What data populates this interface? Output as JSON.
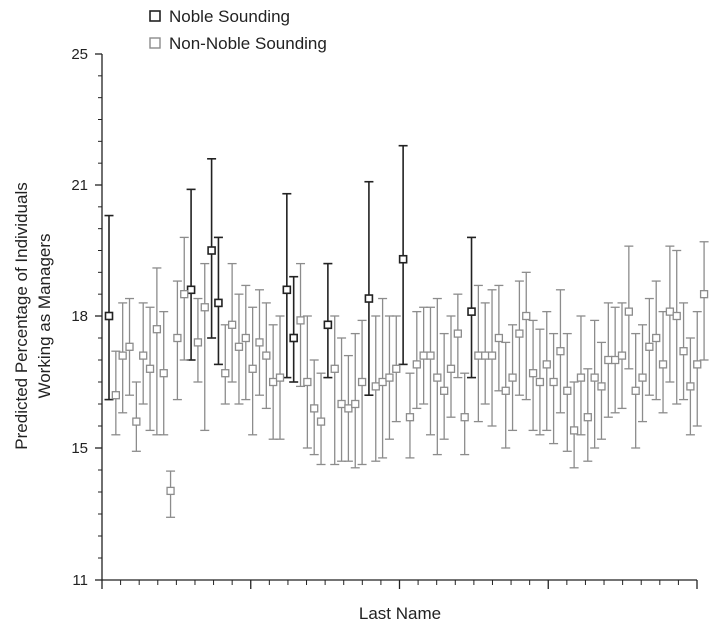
{
  "chart_data": {
    "type": "scatter",
    "xlabel": "Last Name",
    "ylabel_lines": [
      "Predicted Percentage of Individuals",
      "Working as Managers"
    ],
    "y_ticks": [
      25,
      21,
      18,
      15,
      11
    ],
    "ylim": [
      11,
      25
    ],
    "legend": [
      {
        "name": "Noble Sounding",
        "color": "#222222"
      },
      {
        "name": "Non-Noble Sounding",
        "color": "#8c8c8c"
      }
    ],
    "legend_position": "top-left",
    "series": [
      {
        "name": "Noble Sounding",
        "color": "#222222",
        "x": [
          1,
          13,
          16,
          17,
          27,
          28,
          33,
          39,
          44,
          54
        ],
        "y": [
          18.0,
          18.6,
          19.5,
          18.3,
          18.6,
          17.5,
          17.8,
          18.4,
          19.3,
          18.1
        ],
        "ci_low": [
          16.1,
          17.0,
          17.5,
          16.9,
          16.6,
          16.5,
          16.6,
          16.2,
          16.9,
          16.6
        ],
        "ci_high": [
          20.3,
          20.9,
          21.8,
          19.8,
          20.8,
          18.9,
          19.2,
          21.1,
          22.2,
          19.8
        ]
      },
      {
        "name": "Non-Noble Sounding",
        "color": "#8c8c8c",
        "x": [
          2,
          3,
          4,
          5,
          6,
          7,
          8,
          9,
          10,
          11,
          12,
          14,
          15,
          18,
          19,
          20,
          21,
          22,
          23,
          24,
          25,
          26,
          29,
          30,
          31,
          32,
          34,
          35,
          36,
          37,
          38,
          40,
          41,
          42,
          43,
          45,
          46,
          47,
          48,
          49,
          50,
          51,
          52,
          53,
          55,
          56,
          57,
          58,
          59,
          60,
          61,
          62,
          63,
          64,
          65,
          66,
          67,
          68,
          69,
          70,
          71,
          72,
          73,
          74,
          75,
          76,
          77,
          78,
          79,
          80,
          81,
          82,
          83,
          84,
          85,
          86,
          87,
          88
        ],
        "y": [
          16.2,
          17.1,
          17.3,
          15.6,
          17.1,
          16.8,
          17.7,
          16.7,
          13.7,
          17.5,
          18.5,
          17.4,
          18.2,
          16.7,
          17.8,
          17.3,
          17.5,
          16.8,
          17.4,
          17.1,
          16.5,
          16.6,
          17.9,
          16.5,
          15.9,
          15.6,
          16.8,
          16.0,
          15.9,
          16.0,
          16.5,
          16.4,
          16.5,
          16.6,
          16.8,
          15.7,
          16.9,
          17.1,
          17.1,
          16.6,
          16.3,
          16.8,
          17.6,
          15.7,
          17.1,
          17.1,
          17.1,
          17.5,
          16.3,
          16.6,
          17.6,
          18.0,
          16.7,
          16.5,
          16.9,
          16.5,
          17.2,
          16.3,
          15.4,
          16.6,
          15.7,
          16.6,
          16.4,
          17.0,
          17.0,
          17.1,
          18.1,
          16.3,
          16.6,
          17.3,
          17.5,
          16.9,
          18.1,
          18.0,
          17.2,
          16.4,
          16.9,
          18.5
        ],
        "ci_low": [
          15.3,
          15.8,
          16.2,
          14.9,
          16.0,
          15.4,
          15.3,
          15.3,
          12.9,
          16.1,
          17.0,
          16.5,
          15.4,
          16.0,
          16.5,
          16.0,
          16.1,
          15.3,
          16.2,
          15.9,
          15.2,
          15.2,
          16.4,
          15.0,
          14.8,
          14.5,
          14.5,
          14.6,
          14.6,
          14.4,
          14.5,
          14.6,
          14.7,
          15.2,
          15.6,
          14.7,
          15.9,
          16.0,
          15.3,
          14.8,
          15.2,
          15.7,
          16.6,
          14.8,
          15.6,
          16.0,
          15.5,
          16.3,
          15.0,
          15.4,
          16.2,
          16.1,
          15.4,
          15.3,
          15.4,
          15.1,
          15.8,
          14.9,
          14.4,
          15.3,
          14.6,
          15.0,
          15.2,
          15.7,
          15.8,
          15.9,
          16.8,
          15.0,
          15.6,
          16.2,
          16.1,
          15.8,
          16.5,
          16.0,
          16.1,
          15.3,
          15.5,
          17.0
        ],
        "ci_high": [
          17.2,
          18.3,
          18.4,
          16.5,
          18.3,
          18.2,
          19.1,
          18.1,
          14.3,
          18.8,
          19.8,
          18.4,
          19.2,
          17.8,
          19.2,
          18.5,
          18.7,
          18.2,
          18.6,
          18.3,
          17.8,
          18.0,
          19.2,
          18.0,
          17.0,
          16.7,
          18.0,
          17.5,
          17.1,
          17.6,
          17.9,
          18.0,
          18.4,
          18.0,
          18.0,
          16.7,
          18.1,
          18.2,
          18.2,
          18.4,
          17.6,
          18.0,
          18.5,
          16.7,
          18.7,
          18.3,
          18.6,
          18.7,
          17.4,
          17.8,
          18.8,
          19.0,
          17.9,
          17.7,
          18.1,
          17.6,
          18.6,
          17.6,
          16.5,
          18.0,
          16.8,
          17.9,
          17.4,
          18.3,
          18.2,
          18.3,
          19.6,
          17.6,
          17.8,
          18.4,
          18.8,
          18.1,
          19.6,
          19.5,
          18.3,
          17.5,
          18.1,
          19.7
        ]
      }
    ]
  }
}
